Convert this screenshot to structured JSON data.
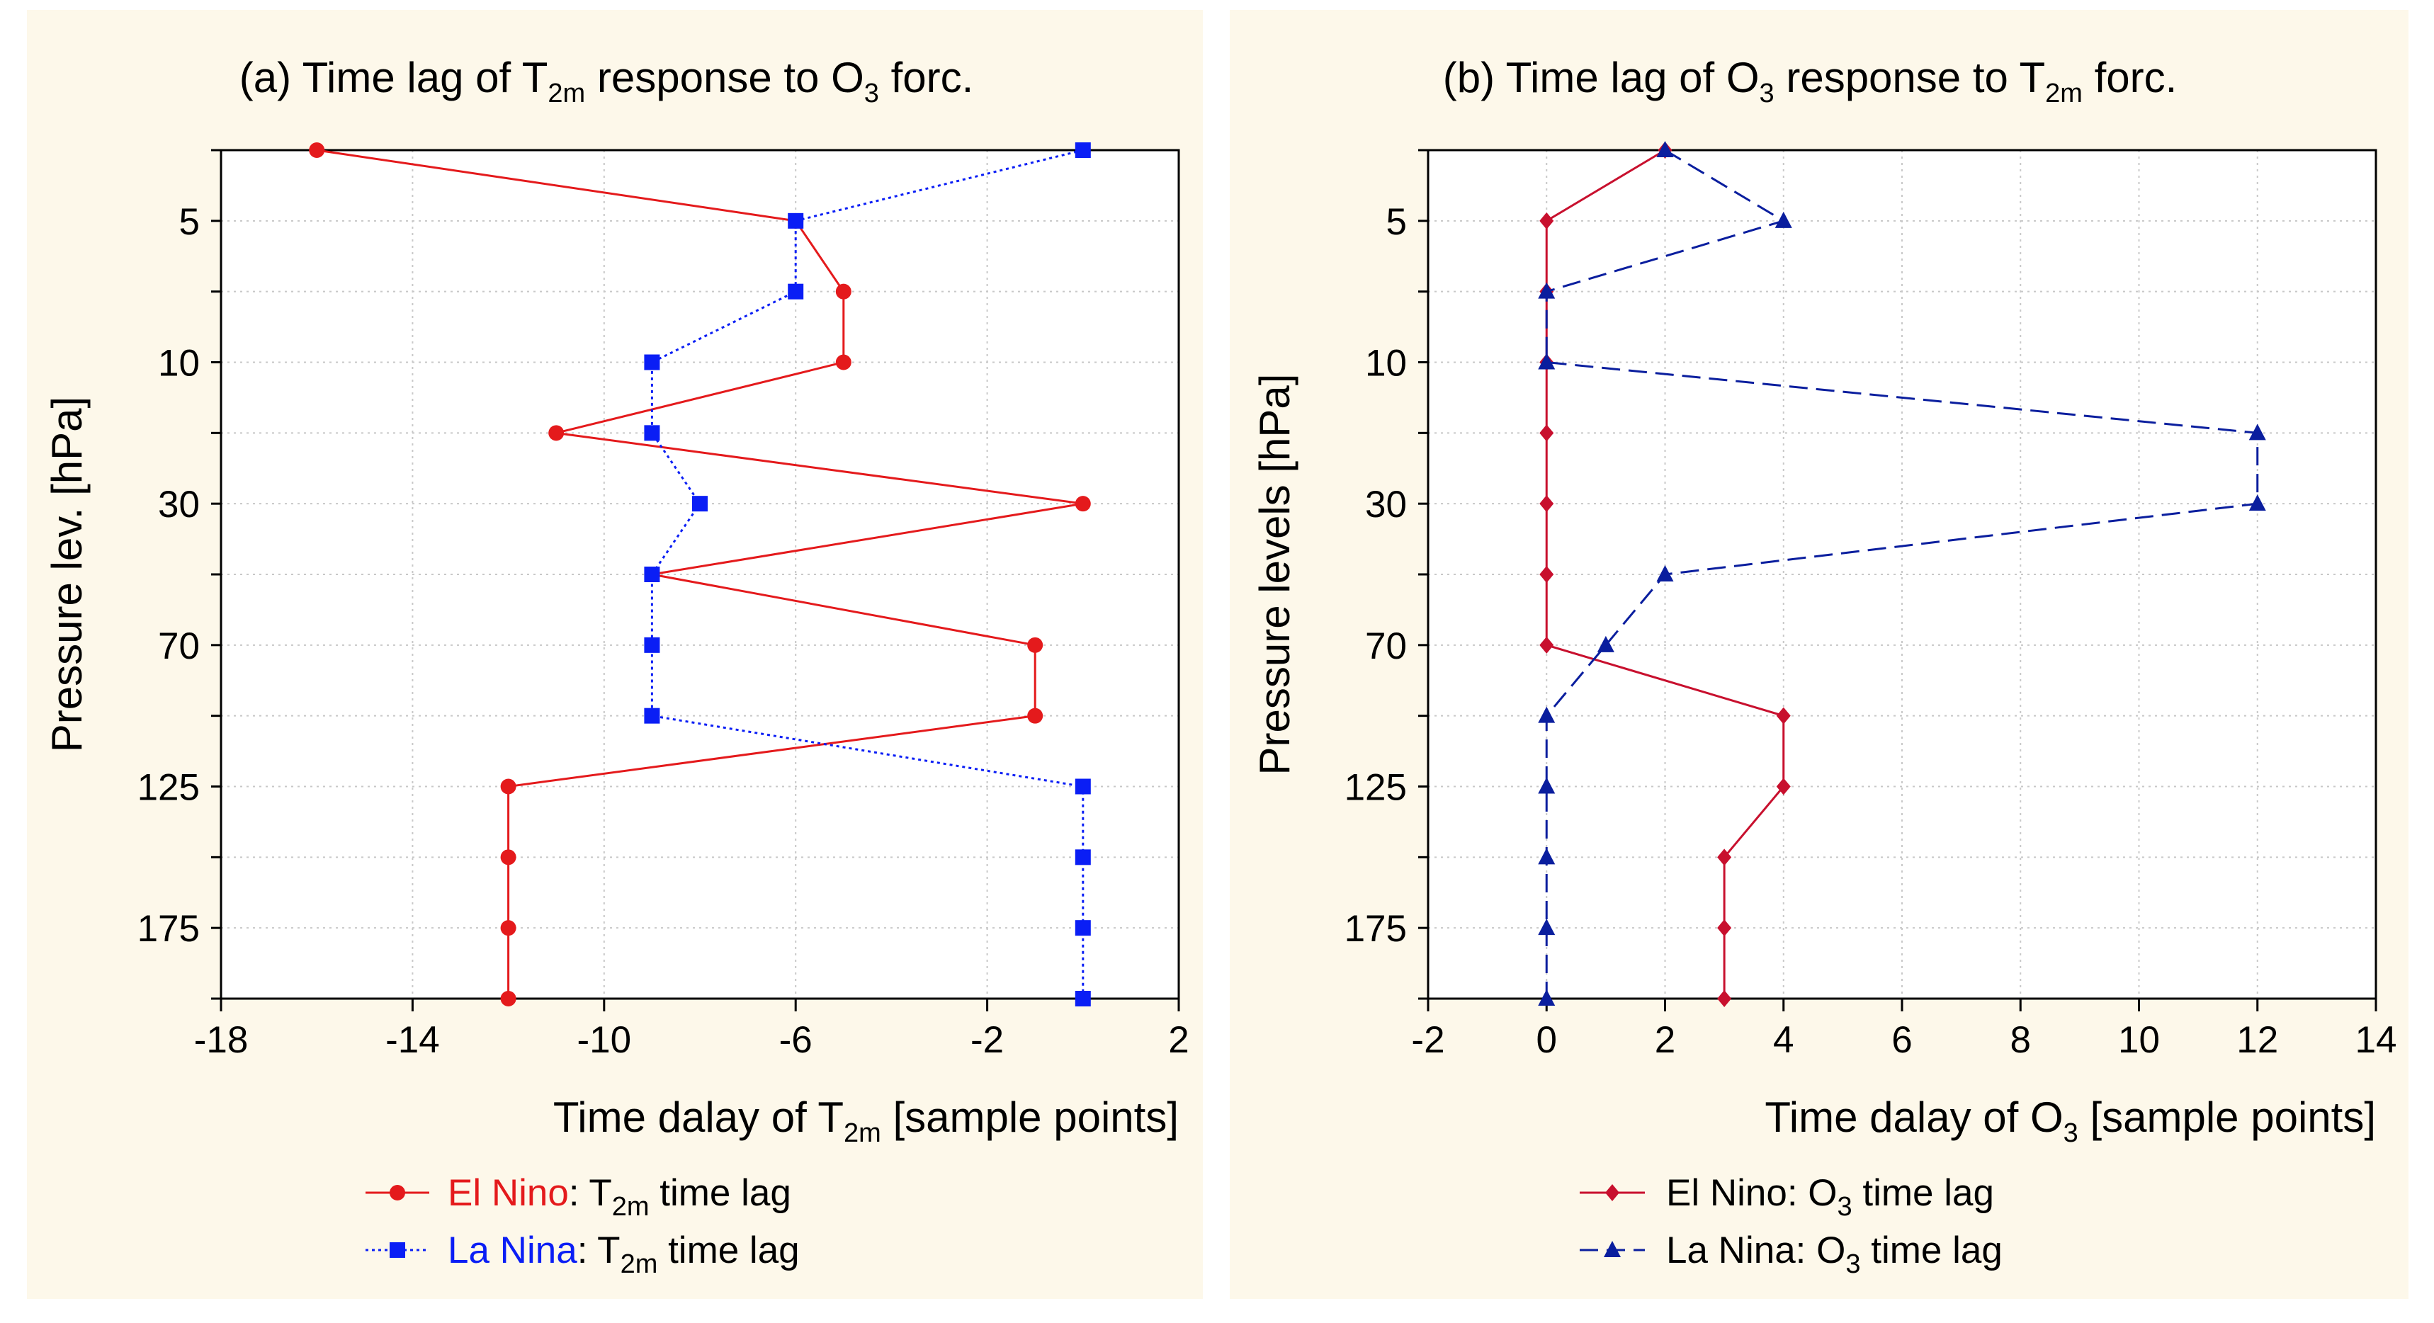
{
  "chart_data": [
    {
      "panel": "a",
      "type": "line",
      "title": {
        "prefix": "(a) Time lag of T",
        "sub1": "2m",
        "mid": " response to O",
        "sub2": "3",
        "suffix": " forc."
      },
      "xlabel": {
        "prefix": "Time dalay of T",
        "sub": "2m",
        "suffix": "  [sample points]"
      },
      "ylabel": "Pressure lev. [hPa]",
      "xlim": [
        -18,
        2
      ],
      "xticks": [
        -18,
        -14,
        -10,
        -6,
        -2,
        2
      ],
      "y_level_count": 13,
      "yticks": [
        {
          "level": 1,
          "label": "5"
        },
        {
          "level": 3,
          "label": "10"
        },
        {
          "level": 5,
          "label": "30"
        },
        {
          "level": 7,
          "label": "70"
        },
        {
          "level": 9,
          "label": "125"
        },
        {
          "level": 11,
          "label": "175"
        }
      ],
      "grid": true,
      "series": [
        {
          "name": "El Nino",
          "legend_suffix": {
            "prefix": ": T",
            "sub": "2m",
            "suffix": " time lag"
          },
          "color": "#e41a1c",
          "dash": "solid",
          "marker": "circle",
          "values": [
            -16,
            -6,
            -5,
            -5,
            -11,
            0,
            -9,
            -1,
            -1,
            -12,
            -12,
            -12,
            -12
          ]
        },
        {
          "name": "La Nina",
          "legend_suffix": {
            "prefix": ": T",
            "sub": "2m",
            "suffix": " time lag"
          },
          "color": "#0a1ef5",
          "dash": "dotted",
          "marker": "square",
          "values": [
            0,
            -6,
            -6,
            -9,
            -9,
            -8,
            -9,
            -9,
            -9,
            0,
            0,
            0,
            0
          ]
        }
      ]
    },
    {
      "panel": "b",
      "type": "line",
      "title": {
        "prefix": "(b) Time lag of O",
        "sub1": "3",
        "mid": " response to T",
        "sub2": "2m",
        "suffix": " forc."
      },
      "xlabel": {
        "prefix": "Time dalay of O",
        "sub": "3",
        "suffix": "  [sample points]"
      },
      "ylabel": "Pressure levels [hPa]",
      "xlim": [
        -2,
        14
      ],
      "xticks": [
        -2,
        0,
        2,
        4,
        6,
        8,
        10,
        12,
        14
      ],
      "y_level_count": 13,
      "yticks": [
        {
          "level": 1,
          "label": "5"
        },
        {
          "level": 3,
          "label": "10"
        },
        {
          "level": 5,
          "label": "30"
        },
        {
          "level": 7,
          "label": "70"
        },
        {
          "level": 9,
          "label": "125"
        },
        {
          "level": 11,
          "label": "175"
        }
      ],
      "grid": true,
      "series": [
        {
          "name": "El Nino: O",
          "legend_suffix": {
            "prefix": "",
            "sub": "3",
            "suffix": " time lag"
          },
          "color": "#c8102e",
          "dash": "solid",
          "marker": "diamond",
          "values": [
            2,
            0,
            0,
            0,
            0,
            0,
            0,
            0,
            4,
            4,
            3,
            3,
            3
          ]
        },
        {
          "name": "La Nina: O",
          "legend_suffix": {
            "prefix": "",
            "sub": "3",
            "suffix": " time lag"
          },
          "color": "#0a1e9e",
          "dash": "dashed",
          "marker": "triangle",
          "values": [
            2,
            4,
            0,
            0,
            12,
            12,
            2,
            1,
            0,
            0,
            0,
            0,
            0
          ]
        }
      ]
    }
  ]
}
